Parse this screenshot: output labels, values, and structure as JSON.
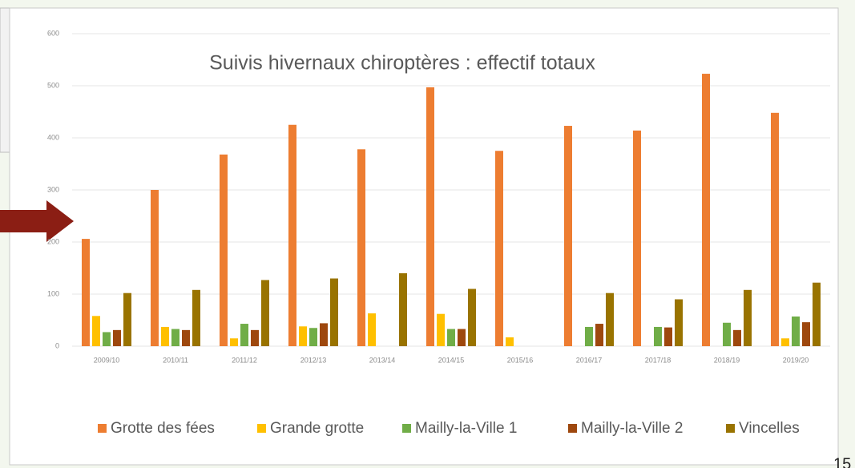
{
  "chart_data": {
    "type": "bar",
    "title": "Suivis hivernaux chiroptères : effectif totaux",
    "categories": [
      "2009/10",
      "2010/11",
      "2011/12",
      "2012/13",
      "2013/14",
      "2014/15",
      "2015/16",
      "2016/17",
      "2017/18",
      "2018/19",
      "2019/20"
    ],
    "series": [
      {
        "name": "Grotte des fées",
        "color": "#ed7d31",
        "values": [
          206,
          300,
          368,
          425,
          378,
          497,
          375,
          423,
          414,
          523,
          448
        ]
      },
      {
        "name": "Grande grotte",
        "color": "#ffc000",
        "values": [
          58,
          37,
          15,
          38,
          63,
          62,
          17,
          null,
          null,
          null,
          15
        ]
      },
      {
        "name": "Mailly-la-Ville 1",
        "color": "#70ad47",
        "values": [
          27,
          33,
          43,
          35,
          null,
          33,
          null,
          37,
          37,
          45,
          57
        ]
      },
      {
        "name": "Mailly-la-Ville 2",
        "color": "#9e480e",
        "values": [
          31,
          31,
          31,
          44,
          null,
          33,
          null,
          43,
          36,
          31,
          46
        ]
      },
      {
        "name": "Vincelles",
        "color": "#997300",
        "values": [
          102,
          108,
          127,
          130,
          140,
          110,
          null,
          102,
          90,
          108,
          122
        ]
      }
    ],
    "ylim": [
      0,
      600
    ],
    "yticks": [
      0,
      100,
      200,
      300,
      400,
      500,
      600
    ],
    "grid": true,
    "page_number": "15"
  }
}
